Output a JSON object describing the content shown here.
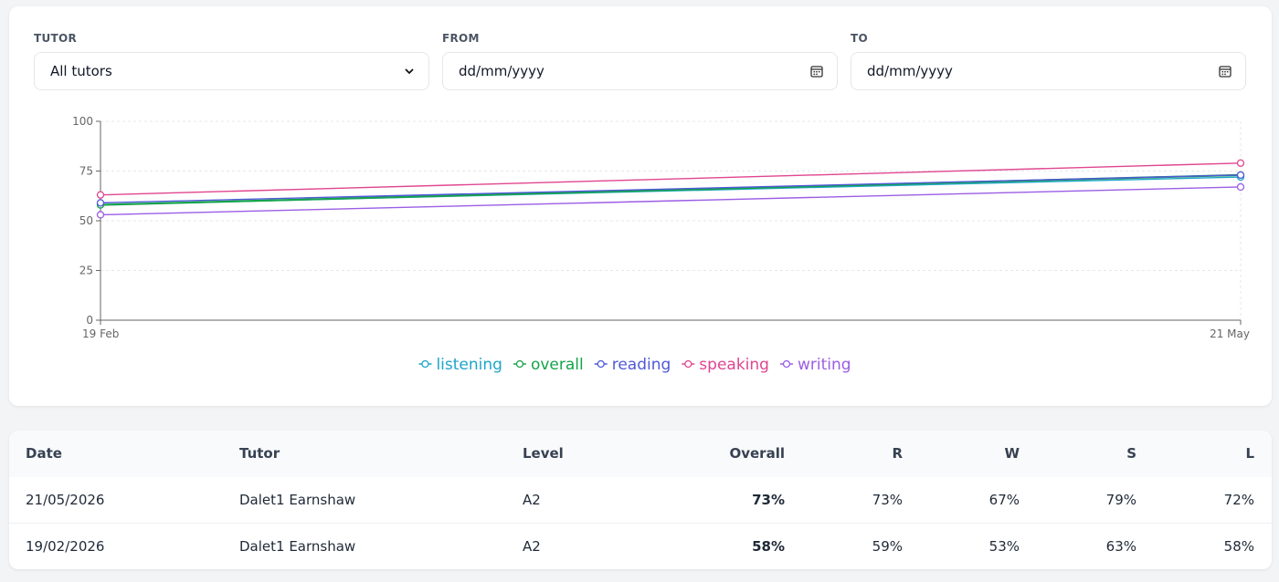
{
  "filters": [
    {
      "label": "TUTOR",
      "value": "All tutors"
    },
    {
      "label": "FROM",
      "value": "dd/mm/yyyy"
    },
    {
      "label": "TO",
      "value": "dd/mm/yyyy"
    }
  ],
  "chart_data": {
    "type": "line",
    "categories": [
      "19 Feb",
      "21 May"
    ],
    "series": [
      {
        "name": "listening",
        "color": "#1ea5c9",
        "values": [
          58,
          72
        ]
      },
      {
        "name": "overall",
        "color": "#16a34a",
        "values": [
          58,
          73
        ]
      },
      {
        "name": "reading",
        "color": "#4f58d8",
        "values": [
          59,
          73
        ]
      },
      {
        "name": "speaking",
        "color": "#e0458f",
        "values": [
          63,
          79
        ]
      },
      {
        "name": "writing",
        "color": "#9b5de5",
        "values": [
          53,
          67
        ]
      }
    ],
    "ylim": [
      0,
      100
    ],
    "yticks": [
      0,
      25,
      50,
      75,
      100
    ],
    "grid": true
  },
  "table": {
    "columns": [
      "Date",
      "Tutor",
      "Level",
      "Overall",
      "R",
      "W",
      "S",
      "L"
    ],
    "rows": [
      [
        "21/05/2026",
        "Dalet1 Earnshaw",
        "A2",
        "73%",
        "73%",
        "67%",
        "79%",
        "72%"
      ],
      [
        "19/02/2026",
        "Dalet1 Earnshaw",
        "A2",
        "58%",
        "59%",
        "53%",
        "63%",
        "58%"
      ]
    ]
  }
}
